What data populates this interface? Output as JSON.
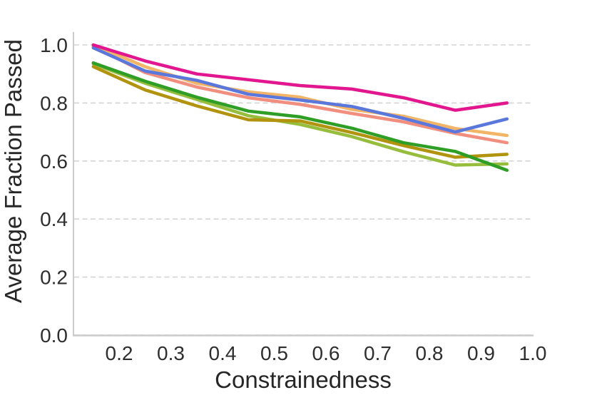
{
  "figure": {
    "title": "",
    "background": "#ffffff",
    "spine_color": "#cbcbcb",
    "grid_color": "#d4d4d4",
    "text_color": "#2e2e2e"
  },
  "chart_data": {
    "type": "line",
    "title": "",
    "xlabel": "Constrainedness",
    "ylabel": "Average Fraction Passed",
    "xlim": [
      0.11,
      1.0
    ],
    "ylim": [
      0.0,
      1.045
    ],
    "x_tick_values": [
      0.2,
      0.3,
      0.4,
      0.5,
      0.6,
      0.7,
      0.8,
      0.9,
      1.0
    ],
    "x_tick_labels": [
      "0.2",
      "0.3",
      "0.4",
      "0.5",
      "0.6",
      "0.7",
      "0.8",
      "0.9",
      "1.0"
    ],
    "y_tick_values": [
      0.0,
      0.2,
      0.4,
      0.6,
      0.8,
      1.0
    ],
    "y_tick_labels": [
      "0.0",
      "0.2",
      "0.4",
      "0.6",
      "0.8",
      "1.0"
    ],
    "grid": "horizontal-dashed",
    "legend": "none",
    "x": [
      0.15,
      0.25,
      0.35,
      0.45,
      0.55,
      0.65,
      0.75,
      0.85,
      0.95
    ],
    "series": [
      {
        "name": "yellowgreen-line",
        "color": "#96BD3C",
        "values": [
          0.935,
          0.868,
          0.812,
          0.756,
          0.726,
          0.684,
          0.632,
          0.586,
          0.59
        ]
      },
      {
        "name": "olive-line",
        "color": "#B2930E",
        "values": [
          0.925,
          0.845,
          0.79,
          0.742,
          0.738,
          0.698,
          0.653,
          0.613,
          0.623
        ]
      },
      {
        "name": "green-line",
        "color": "#2F9E26",
        "values": [
          0.938,
          0.875,
          0.82,
          0.772,
          0.752,
          0.713,
          0.663,
          0.633,
          0.568
        ]
      },
      {
        "name": "salmon-line",
        "color": "#F28E7E",
        "values": [
          0.995,
          0.905,
          0.855,
          0.818,
          0.795,
          0.764,
          0.735,
          0.695,
          0.663
        ]
      },
      {
        "name": "orange-line",
        "color": "#F2B466",
        "values": [
          1.0,
          0.925,
          0.868,
          0.838,
          0.82,
          0.778,
          0.754,
          0.712,
          0.688
        ]
      },
      {
        "name": "blue-line",
        "color": "#5A77DC",
        "values": [
          0.99,
          0.91,
          0.878,
          0.83,
          0.81,
          0.788,
          0.747,
          0.7,
          0.745
        ]
      },
      {
        "name": "magenta-line",
        "color": "#E2178F",
        "values": [
          1.0,
          0.945,
          0.9,
          0.88,
          0.86,
          0.848,
          0.818,
          0.775,
          0.8
        ]
      }
    ]
  }
}
